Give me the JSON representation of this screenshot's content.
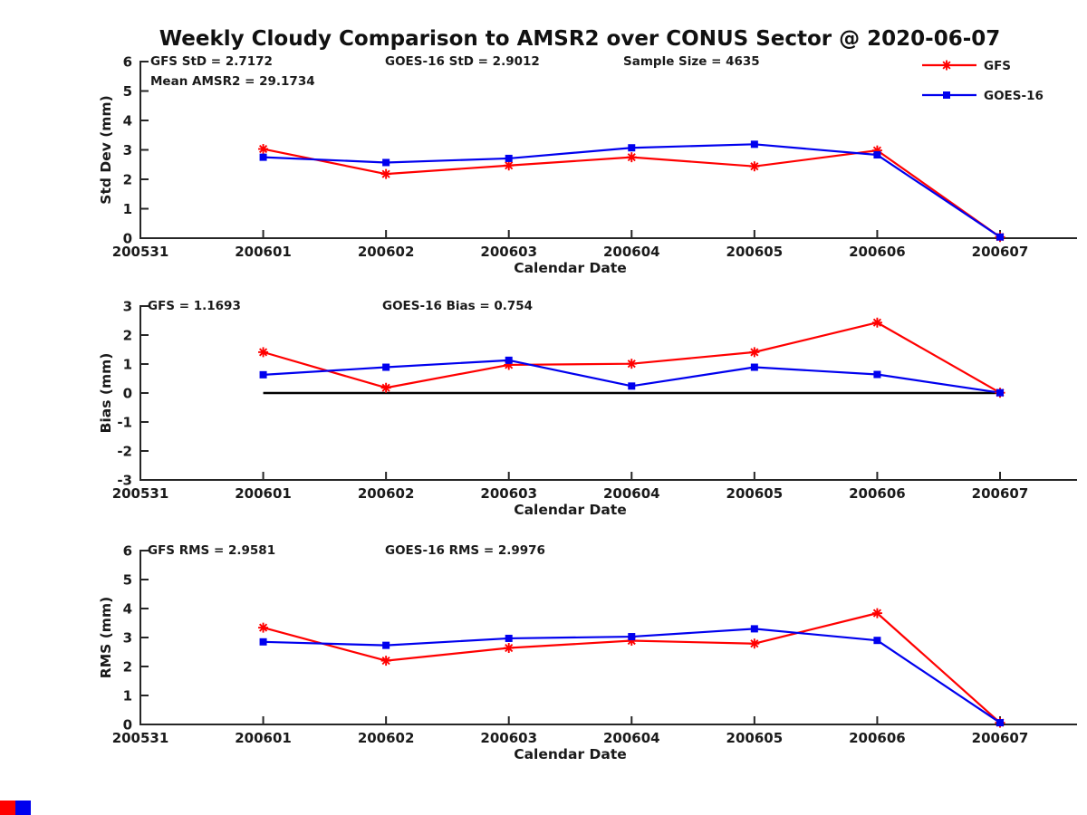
{
  "title": "Weekly Cloudy Comparison to AMSR2 over CONUS Sector @ 2020-06-07",
  "legend": {
    "items": [
      {
        "label": "GFS",
        "color": "#ff0000",
        "marker": "asterisk"
      },
      {
        "label": "GOES-16",
        "color": "#0000ee",
        "marker": "square"
      }
    ]
  },
  "corner_marks": {
    "left_color": "#ff0000",
    "right_color": "#0000ee"
  },
  "chart_data": [
    {
      "type": "line",
      "name": "std-dev",
      "ylabel": "Std Dev (mm)",
      "xlabel": "Calendar Date",
      "ylim": [
        0,
        6
      ],
      "yticks": [
        0,
        1,
        2,
        3,
        4,
        5,
        6
      ],
      "grid": false,
      "zero_line": false,
      "categories": [
        "200531",
        "200601",
        "200602",
        "200603",
        "200604",
        "200605",
        "200606",
        "200607"
      ],
      "annotations": [
        {
          "text": "GFS StD = 2.7172",
          "x": 166,
          "row": 0
        },
        {
          "text": "Mean AMSR2 = 29.1734",
          "x": 166,
          "row": 1
        },
        {
          "text": "GOES-16 StD = 2.9012",
          "x": 425,
          "row": 0
        },
        {
          "text": "Sample Size = 4635",
          "x": 688,
          "row": 0
        }
      ],
      "series": [
        {
          "name": "GFS",
          "color": "#ff0000",
          "marker": "asterisk",
          "x": [
            "200601",
            "200602",
            "200603",
            "200604",
            "200605",
            "200606",
            "200607"
          ],
          "values": [
            3.03,
            2.18,
            2.47,
            2.75,
            2.44,
            2.98,
            0.04
          ]
        },
        {
          "name": "GOES-16",
          "color": "#0000ee",
          "marker": "square",
          "x": [
            "200601",
            "200602",
            "200603",
            "200604",
            "200605",
            "200606",
            "200607"
          ],
          "values": [
            2.75,
            2.57,
            2.71,
            3.07,
            3.19,
            2.83,
            0.04
          ]
        }
      ]
    },
    {
      "type": "line",
      "name": "bias",
      "ylabel": "Bias (mm)",
      "xlabel": "Calendar Date",
      "ylim": [
        -3,
        3
      ],
      "yticks": [
        3,
        2,
        1,
        0,
        -1,
        -2,
        -3
      ],
      "grid": false,
      "zero_line": true,
      "categories": [
        "200531",
        "200601",
        "200602",
        "200603",
        "200604",
        "200605",
        "200606",
        "200607"
      ],
      "annotations": [
        {
          "text": "GFS = 1.1693",
          "x": 163,
          "row": 0
        },
        {
          "text": "GOES-16 Bias  = 0.754",
          "x": 422,
          "row": 0
        }
      ],
      "series": [
        {
          "name": "GFS",
          "color": "#ff0000",
          "marker": "asterisk",
          "x": [
            "200601",
            "200602",
            "200603",
            "200604",
            "200605",
            "200606",
            "200607"
          ],
          "values": [
            1.41,
            0.18,
            0.97,
            1.01,
            1.41,
            2.43,
            0.01
          ]
        },
        {
          "name": "GOES-16",
          "color": "#0000ee",
          "marker": "square",
          "x": [
            "200601",
            "200602",
            "200603",
            "200604",
            "200605",
            "200606",
            "200607"
          ],
          "values": [
            0.63,
            0.89,
            1.13,
            0.24,
            0.89,
            0.64,
            0.01
          ]
        }
      ]
    },
    {
      "type": "line",
      "name": "rms",
      "ylabel": "RMS (mm)",
      "xlabel": "Calendar Date",
      "ylim": [
        0,
        6
      ],
      "yticks": [
        0,
        1,
        2,
        3,
        4,
        5,
        6
      ],
      "grid": false,
      "zero_line": false,
      "categories": [
        "200531",
        "200601",
        "200602",
        "200603",
        "200604",
        "200605",
        "200606",
        "200607"
      ],
      "annotations": [
        {
          "text": "GFS RMS = 2.9581",
          "x": 163,
          "row": 0
        },
        {
          "text": "GOES-16 RMS = 2.9976",
          "x": 425,
          "row": 0
        }
      ],
      "series": [
        {
          "name": "GFS",
          "color": "#ff0000",
          "marker": "asterisk",
          "x": [
            "200601",
            "200602",
            "200603",
            "200604",
            "200605",
            "200606",
            "200607"
          ],
          "values": [
            3.34,
            2.2,
            2.64,
            2.89,
            2.79,
            3.84,
            0.06
          ]
        },
        {
          "name": "GOES-16",
          "color": "#0000ee",
          "marker": "square",
          "x": [
            "200601",
            "200602",
            "200603",
            "200604",
            "200605",
            "200606",
            "200607"
          ],
          "values": [
            2.85,
            2.73,
            2.97,
            3.03,
            3.3,
            2.9,
            0.06
          ]
        }
      ]
    }
  ]
}
